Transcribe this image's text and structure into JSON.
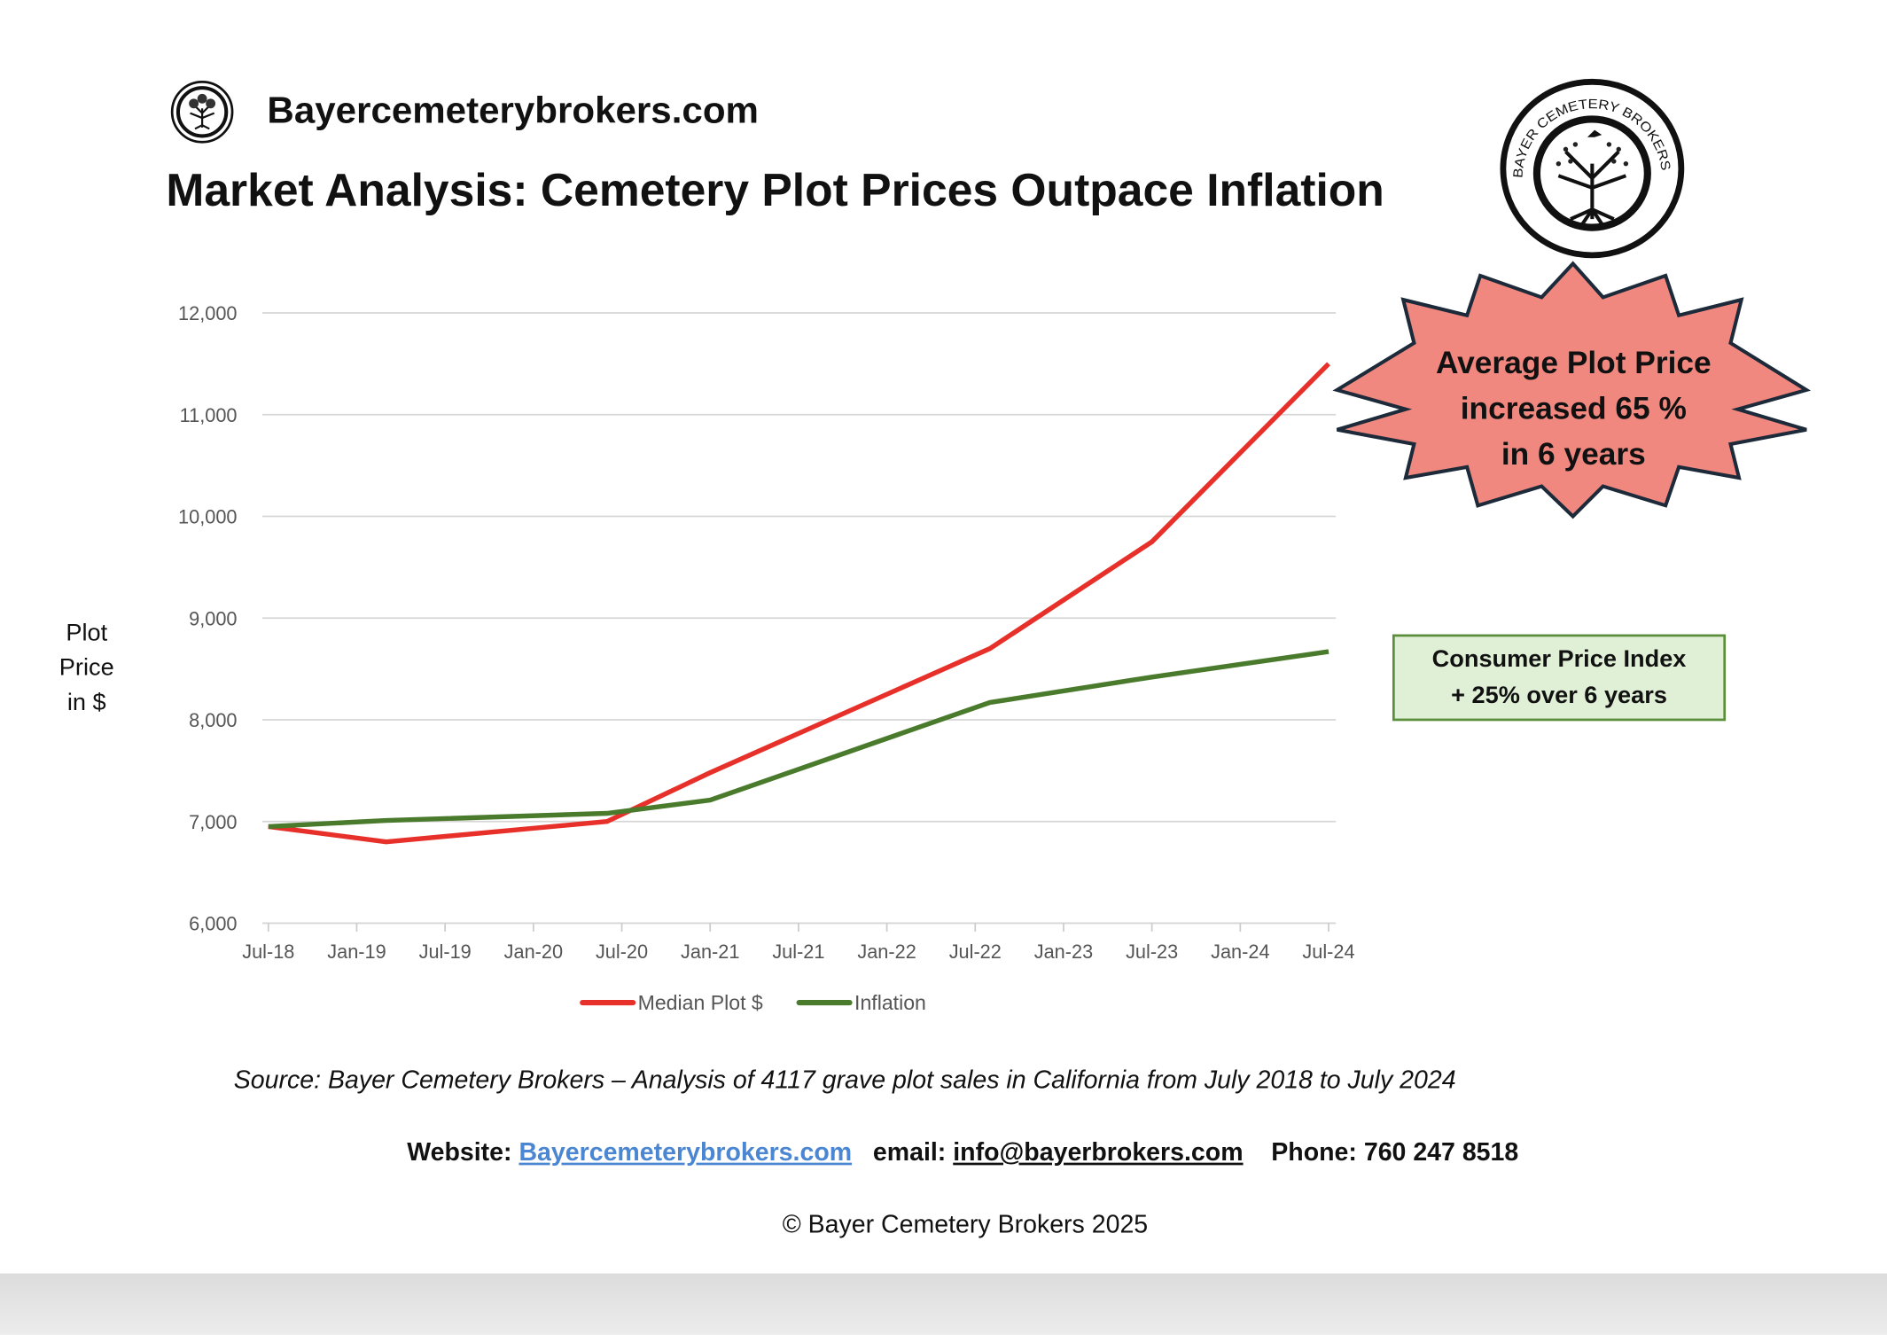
{
  "header": {
    "site_name": "Bayercemeterybrokers.com",
    "title": "Market Analysis: Cemetery Plot Prices Outpace Inflation",
    "logo_text": "BAYER CEMETERY BROKERS"
  },
  "callouts": {
    "burst_lines": [
      "Average Plot Price",
      "increased 65 %",
      "in 6 years"
    ],
    "burst_color": "#f08880",
    "cpi_lines": [
      "Consumer Price Index",
      "+ 25% over 6 years"
    ],
    "cpi_color": "#e0f0d6"
  },
  "chart_data": {
    "type": "line",
    "ylabel_lines": [
      "Plot",
      "Price",
      "in $"
    ],
    "ylim": [
      6000,
      12000
    ],
    "yticks": [
      6000,
      7000,
      8000,
      9000,
      10000,
      11000,
      12000
    ],
    "ytick_labels": [
      "6,000",
      "7,000",
      "8,000",
      "9,000",
      "10,000",
      "11,000",
      "12,000"
    ],
    "xtick_labels": [
      "Jul-18",
      "Jan-19",
      "Jul-19",
      "Jan-20",
      "Jul-20",
      "Jan-21",
      "Jul-21",
      "Jan-22",
      "Jul-22",
      "Jan-23",
      "Jul-23",
      "Jan-24",
      "Jul-24"
    ],
    "xlim": [
      "2018-07",
      "2024-07"
    ],
    "grid": "horizontal",
    "legend_placement": "bottom",
    "x": [
      "2018-07",
      "2019-03",
      "2020-06",
      "2021-01",
      "2022-08",
      "2023-07",
      "2024-07"
    ],
    "series": [
      {
        "name": "Median Plot $",
        "color": "#e8302a",
        "values": [
          6950,
          6800,
          7000,
          7480,
          8700,
          9750,
          11500
        ]
      },
      {
        "name": "Inflation",
        "color": "#4a7a2c",
        "values": [
          6950,
          7010,
          7080,
          7210,
          8170,
          8420,
          8670
        ]
      }
    ]
  },
  "footer": {
    "source": "Source: Bayer Cemetery Brokers – Analysis of 4117 grave plot sales in California from July 2018 to July 2024",
    "website_label": "Website:",
    "website": "Bayercemeterybrokers.com",
    "email_label": "email:",
    "email": "info@bayerbrokers.com",
    "phone_label": "Phone:",
    "phone": "760 247 8518",
    "copyright": "© Bayer Cemetery Brokers 2025"
  }
}
